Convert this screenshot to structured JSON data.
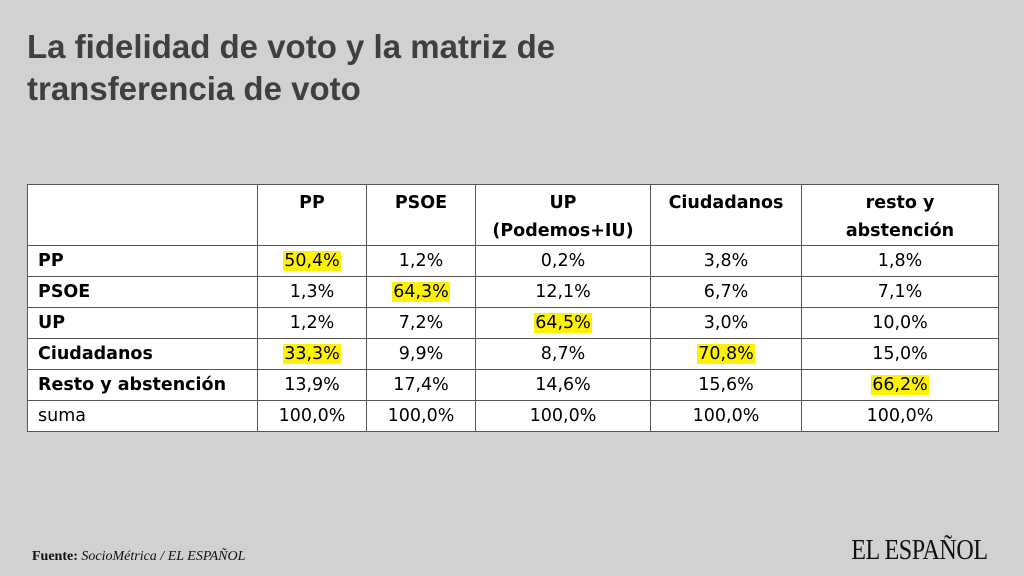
{
  "title_lines": [
    "La fidelidad de voto y la matriz de",
    "transferencia de voto"
  ],
  "chart_data": {
    "type": "table",
    "columns": [
      {
        "lines": [
          "PP"
        ]
      },
      {
        "lines": [
          "PSOE"
        ]
      },
      {
        "lines": [
          "UP",
          "(Podemos+IU)"
        ]
      },
      {
        "lines": [
          "Ciudadanos"
        ]
      },
      {
        "lines": [
          "resto y",
          "abstención"
        ]
      }
    ],
    "rows": [
      {
        "label": "PP",
        "bold": true,
        "values": [
          "50,4%",
          "1,2%",
          "0,2%",
          "3,8%",
          "1,8%"
        ],
        "highlight": [
          0
        ]
      },
      {
        "label": "PSOE",
        "bold": true,
        "values": [
          "1,3%",
          "64,3%",
          "12,1%",
          "6,7%",
          "7,1%"
        ],
        "highlight": [
          1
        ]
      },
      {
        "label": "UP",
        "bold": true,
        "values": [
          "1,2%",
          "7,2%",
          "64,5%",
          "3,0%",
          "10,0%"
        ],
        "highlight": [
          2
        ]
      },
      {
        "label": "Ciudadanos",
        "bold": true,
        "values": [
          "33,3%",
          "9,9%",
          "8,7%",
          "70,8%",
          "15,0%"
        ],
        "highlight": [
          0,
          3
        ]
      },
      {
        "label": "Resto y abstención",
        "bold": true,
        "values": [
          "13,9%",
          "17,4%",
          "14,6%",
          "15,6%",
          "66,2%"
        ],
        "highlight": [
          4
        ]
      },
      {
        "label": "suma",
        "bold": false,
        "values": [
          "100,0%",
          "100,0%",
          "100,0%",
          "100,0%",
          "100,0%"
        ],
        "highlight": []
      }
    ],
    "highlight_color": "#fff200"
  },
  "source": {
    "label": "Fuente:",
    "text": "SocioMétrica / EL ESPAÑOL"
  },
  "logo_text": "EL ESPAÑOL",
  "colors": {
    "background": "#d1d1d1",
    "title": "#3f3f3f",
    "table_bg": "#ffffff",
    "border": "#555555"
  }
}
